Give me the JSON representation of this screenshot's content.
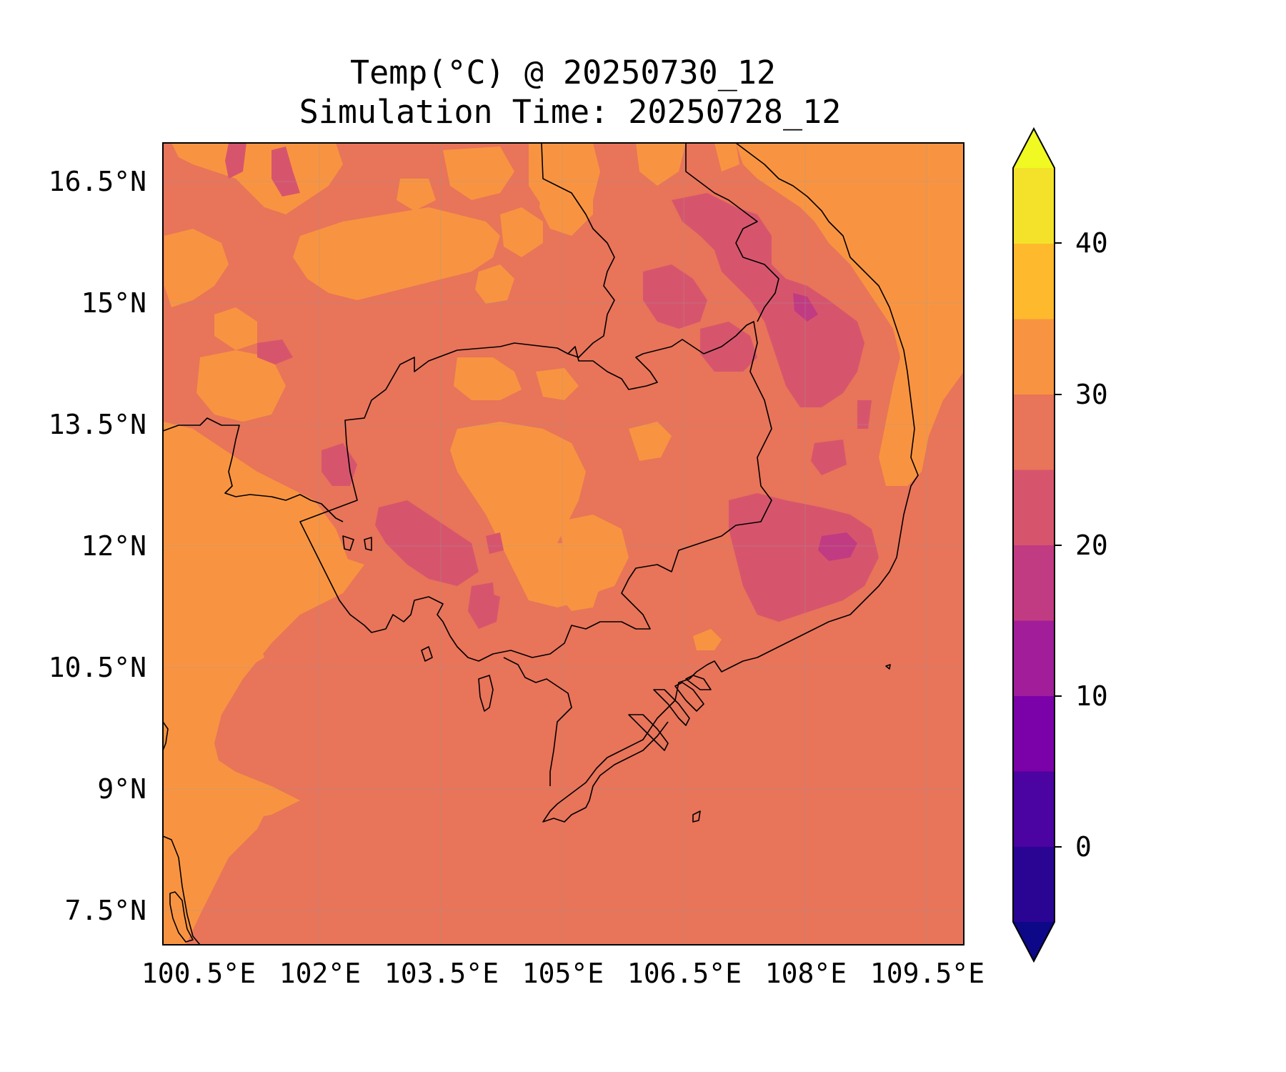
{
  "title": {
    "line1": "Temp(°C) @ 20250730_12",
    "line2": "Simulation Time: 20250728_12"
  },
  "map": {
    "lon_range": [
      100.5,
      110.4
    ],
    "lat_range": [
      7.0,
      16.9
    ],
    "x_ticks": [
      "100.5°E",
      "102°E",
      "103.5°E",
      "105°E",
      "106.5°E",
      "108°E",
      "109.5°E"
    ],
    "y_ticks": [
      "16.5°N",
      "15°N",
      "13.5°N",
      "12°N",
      "10.5°N",
      "9°N",
      "7.5°N"
    ],
    "background_level": "25-30",
    "gridlines": true
  },
  "colorbar": {
    "ticks": [
      "40",
      "30",
      "20",
      "10",
      "0"
    ],
    "levels": [
      -5,
      0,
      5,
      10,
      15,
      20,
      25,
      30,
      35,
      40,
      45
    ],
    "colors": [
      "#2a0593",
      "#4b03a1",
      "#7b02a8",
      "#a21d9a",
      "#c13b82",
      "#d6556d",
      "#e87459",
      "#f89441",
      "#feba2c",
      "#f4e22a"
    ],
    "under_color": "#0d0887",
    "over_color": "#f0f921",
    "extend": "both"
  },
  "colors": {
    "level_20_25": "#d6556d",
    "level_25_30": "#e87459",
    "level_30_35": "#f89441",
    "level_15_20": "#c13b82",
    "coastline": "#000000"
  }
}
